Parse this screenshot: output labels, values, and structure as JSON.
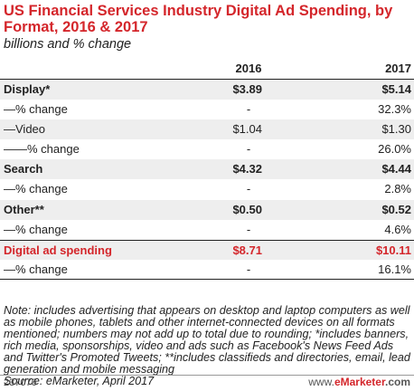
{
  "title": "US Financial Services Industry Digital Ad Spending, by Format, 2016 & 2017",
  "subtitle": "billions and % change",
  "header": {
    "label": "",
    "col1": "2016",
    "col2": "2017"
  },
  "rows": [
    {
      "label": "Display*",
      "v2016": "$3.89",
      "v2017": "$5.14"
    },
    {
      "label": "—% change",
      "v2016": "-",
      "v2017": "32.3%"
    },
    {
      "label": "—Video",
      "v2016": "$1.04",
      "v2017": "$1.30"
    },
    {
      "label": "——% change",
      "v2016": "-",
      "v2017": "26.0%"
    },
    {
      "label": "Search",
      "v2016": "$4.32",
      "v2017": "$4.44"
    },
    {
      "label": "—% change",
      "v2016": "-",
      "v2017": "2.8%"
    },
    {
      "label": "Other**",
      "v2016": "$0.50",
      "v2017": "$0.52"
    },
    {
      "label": "—% change",
      "v2016": "-",
      "v2017": "4.6%"
    },
    {
      "label": "Digital ad spending",
      "v2016": "$8.71",
      "v2017": "$10.11"
    },
    {
      "label": "—% change",
      "v2016": "-",
      "v2017": "16.1%"
    }
  ],
  "note": "Note: includes advertising that appears on desktop and laptop computers as well as mobile phones, tablets and other internet-connected devices on all formats mentioned; numbers may not add up to total due to rounding; *includes banners, rich media, sponsorships, video and ads such as Facebook's News Feed Ads and Twitter's Promoted Tweets; **includes classifieds and directories, email, lead generation and mobile messaging",
  "source": "Source: eMarketer, April 2017",
  "footer": {
    "id": "237076",
    "site_prefix": "www.",
    "site_brand": "eMarketer",
    "site_suffix": ".com"
  },
  "colors": {
    "accent": "#d4262b",
    "shade": "#eeeeee",
    "text": "#222222"
  },
  "chart_data": {
    "type": "table",
    "title": "US Financial Services Industry Digital Ad Spending, by Format, 2016 & 2017",
    "subtitle": "billions and % change",
    "columns": [
      "2016",
      "2017"
    ],
    "rows": [
      {
        "label": "Display*",
        "values": [
          3.89,
          5.14
        ]
      },
      {
        "label": "—% change",
        "values": [
          null,
          32.3
        ]
      },
      {
        "label": "—Video",
        "values": [
          1.04,
          1.3
        ]
      },
      {
        "label": "——% change",
        "values": [
          null,
          26.0
        ]
      },
      {
        "label": "Search",
        "values": [
          4.32,
          4.44
        ]
      },
      {
        "label": "—% change",
        "values": [
          null,
          2.8
        ]
      },
      {
        "label": "Other**",
        "values": [
          0.5,
          0.52
        ]
      },
      {
        "label": "—% change",
        "values": [
          null,
          4.6
        ]
      },
      {
        "label": "Digital ad spending",
        "values": [
          8.71,
          10.11
        ]
      },
      {
        "label": "—% change",
        "values": [
          null,
          16.1
        ]
      }
    ]
  }
}
